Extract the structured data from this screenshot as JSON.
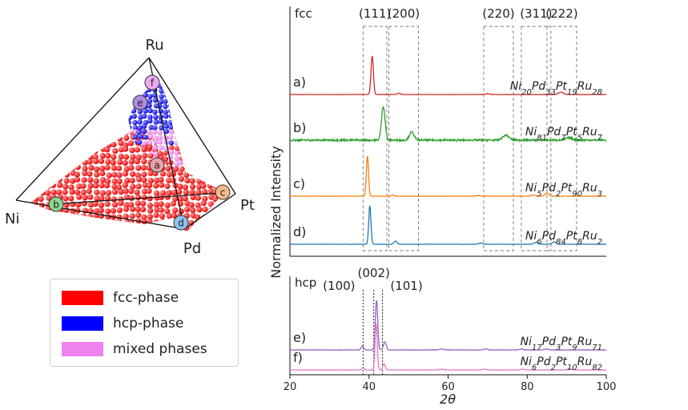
{
  "ternary": {
    "vertices": {
      "top": "Ru",
      "left": "Ni",
      "right": "Pt",
      "bottom": "Pd"
    },
    "markers": [
      {
        "id": "a",
        "label": "a)",
        "color": "#e8a0a8"
      },
      {
        "id": "b",
        "label": "b)",
        "color": "#8fd48f"
      },
      {
        "id": "c",
        "label": "c)",
        "color": "#f5b98a"
      },
      {
        "id": "d",
        "label": "d)",
        "color": "#8ec3ea"
      },
      {
        "id": "e",
        "label": "e)",
        "color": "#b08ae0"
      },
      {
        "id": "f",
        "label": "f)",
        "color": "#f0a8f0"
      }
    ],
    "phase_colors": {
      "fcc": "#ff0000",
      "hcp": "#0000ff",
      "mixed": "#ee82ee"
    }
  },
  "legend": [
    {
      "label": "fcc-phase",
      "color": "#ff0000"
    },
    {
      "label": "hcp-phase",
      "color": "#0000ff"
    },
    {
      "label": "mixed phases",
      "color": "#ee82ee"
    }
  ],
  "chart_data": {
    "type": "line",
    "xlabel": "2θ",
    "ylabel": "Normalized Intensity",
    "xlim": [
      20,
      100
    ],
    "xticks": [
      "20",
      "40",
      "60",
      "80",
      "100"
    ],
    "panels": [
      {
        "name": "fcc",
        "regions": [
          {
            "label": "(111)",
            "x0": 38.5,
            "x1": 44.5
          },
          {
            "label": "(200)",
            "x0": 45.0,
            "x1": 52.5
          },
          {
            "label": "(220)",
            "x0": 69.0,
            "x1": 76.5
          },
          {
            "label": "(311)",
            "x0": 78.5,
            "x1": 86.0
          },
          {
            "label": "(222)",
            "x0": 85.0,
            "x1": 92.5
          }
        ],
        "series": [
          {
            "label": "a)",
            "color": "#d62728",
            "formula": [
              [
                "Ni",
                "20"
              ],
              [
                "Pd",
                "33"
              ],
              [
                "Pt",
                "19"
              ],
              [
                "Ru",
                "28"
              ]
            ],
            "noise": 0.3,
            "peaks": [
              [
                40.8,
                48,
                0.3
              ],
              [
                47.5,
                1.5,
                0.4
              ],
              [
                70,
                1,
                0.5
              ],
              [
                88.5,
                3,
                0.6
              ]
            ]
          },
          {
            "label": "b)",
            "color": "#2ca02c",
            "formula": [
              [
                "Ni",
                "81"
              ],
              [
                "Pd",
                "7"
              ],
              [
                "Pt",
                "5"
              ],
              [
                "Ru",
                "7"
              ]
            ],
            "noise": 2.2,
            "peaks": [
              [
                43.6,
                42,
                0.45
              ],
              [
                50.8,
                10,
                0.6
              ],
              [
                74.6,
                6,
                0.8
              ],
              [
                90.6,
                3,
                0.8
              ]
            ]
          },
          {
            "label": "c)",
            "color": "#ff7f0e",
            "formula": [
              [
                "Ni",
                "5"
              ],
              [
                "Pd",
                "2"
              ],
              [
                "Pt",
                "90"
              ],
              [
                "Ru",
                "3"
              ]
            ],
            "noise": 0.3,
            "peaks": [
              [
                39.6,
                50,
                0.28
              ],
              [
                46.0,
                1.5,
                0.4
              ],
              [
                67.5,
                1,
                0.5
              ],
              [
                81.5,
                1.5,
                0.5
              ],
              [
                85.0,
                4,
                0.5
              ]
            ]
          },
          {
            "label": "d)",
            "color": "#1f77b4",
            "formula": [
              [
                "Ni",
                "6"
              ],
              [
                "Pd",
                "84"
              ],
              [
                "Pt",
                "8"
              ],
              [
                "Ru",
                "2"
              ]
            ],
            "noise": 0.3,
            "peaks": [
              [
                40.2,
                48,
                0.28
              ],
              [
                46.7,
                4,
                0.4
              ],
              [
                68.2,
                1.5,
                0.5
              ],
              [
                82.3,
                2.5,
                0.5
              ],
              [
                86.8,
                3,
                0.5
              ]
            ]
          }
        ]
      },
      {
        "name": "hcp",
        "regions": [
          {
            "label": "(100)",
            "x": 38.5
          },
          {
            "label": "(002)",
            "x": 41.2
          },
          {
            "label": "(101)",
            "x": 43.4
          }
        ],
        "series": [
          {
            "label": "e)",
            "color": "#9467bd",
            "formula": [
              [
                "Ni",
                "17"
              ],
              [
                "Pd",
                "3"
              ],
              [
                "Pt",
                "9"
              ],
              [
                "Ru",
                "71"
              ]
            ],
            "noise": 0.4,
            "peaks": [
              [
                38.3,
                5,
                0.3
              ],
              [
                41.9,
                62,
                0.3
              ],
              [
                44.0,
                10,
                0.35
              ],
              [
                58.3,
                1.2,
                0.5
              ],
              [
                69.5,
                1.2,
                0.5
              ],
              [
                78.5,
                1.2,
                0.5
              ],
              [
                84.8,
                1.2,
                0.5
              ]
            ]
          },
          {
            "label": "f)",
            "color": "#e377c2",
            "formula": [
              [
                "Ni",
                "6"
              ],
              [
                "Pd",
                "2"
              ],
              [
                "Pt",
                "10"
              ],
              [
                "Ru",
                "82"
              ]
            ],
            "noise": 0.3,
            "peaks": [
              [
                38.5,
                3,
                0.3
              ],
              [
                41.8,
                58,
                0.28
              ],
              [
                43.8,
                8,
                0.3
              ],
              [
                58.3,
                1,
                0.5
              ],
              [
                69.2,
                1,
                0.5
              ],
              [
                78.8,
                1,
                0.5
              ],
              [
                90.8,
                1.5,
                0.5
              ]
            ]
          }
        ]
      }
    ]
  }
}
